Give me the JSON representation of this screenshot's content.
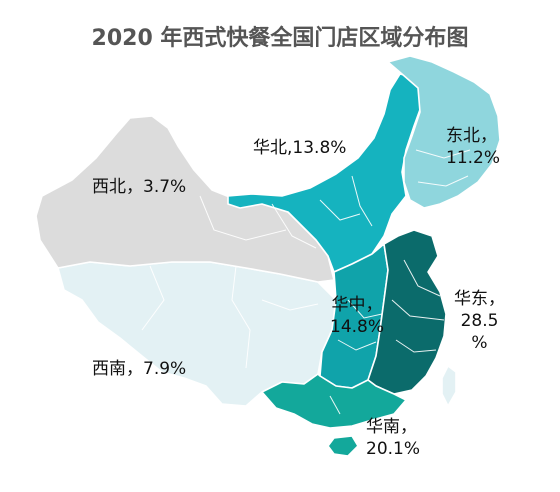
{
  "title": "2020 年西式快餐全国门店区域分布图",
  "regions": [
    {
      "id": "xinan",
      "name": "西南",
      "share": "7.9%",
      "label": "西南，7.9%",
      "color": "#e3f1f4"
    },
    {
      "id": "xibei",
      "name": "西北",
      "share": "3.7%",
      "label": "西北，3.7%",
      "color": "#dcdcdc"
    },
    {
      "id": "huabei",
      "name": "华北",
      "share": "13.8%",
      "label": "华北,13.8%",
      "color": "#15b3bf"
    },
    {
      "id": "dongbei",
      "name": "东北",
      "share": "11.2%",
      "label_lines": [
        "东北，",
        "11.2%"
      ],
      "color": "#8fd6dd"
    },
    {
      "id": "huazhong",
      "name": "华中",
      "share": "14.8%",
      "label_lines": [
        "华中，",
        "14.8%"
      ],
      "color": "#10a3aa"
    },
    {
      "id": "huadong",
      "name": "华东",
      "share": "28.5%",
      "label_lines": [
        "华东，",
        "28.5",
        "%"
      ],
      "color": "#0b6b6b"
    },
    {
      "id": "huanan",
      "name": "华南",
      "share": "20.1%",
      "label_lines": [
        "华南，",
        "20.1%"
      ],
      "color": "#13a89b"
    }
  ],
  "taiwan_color": "#e3f1f4"
}
